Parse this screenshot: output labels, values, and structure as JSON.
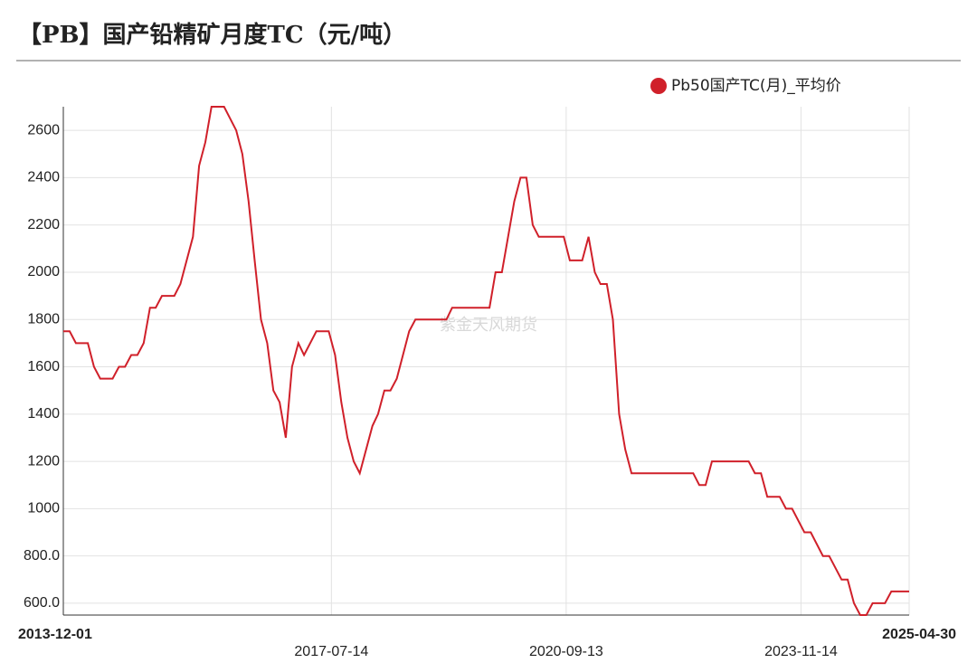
{
  "chart_data": {
    "type": "line",
    "title": "【PB】国产铅精矿月度TC（元/吨）",
    "watermark": "紫金天风期货",
    "x": [
      "2013-12-01",
      "2014-01-01",
      "2014-02-01",
      "2014-04-01",
      "2014-05-01",
      "2014-06-01",
      "2014-08-01",
      "2014-09-01",
      "2014-10-01",
      "2014-11-01",
      "2014-12-01",
      "2015-01-01",
      "2015-02-01",
      "2015-03-01",
      "2015-04-01",
      "2015-06-01",
      "2015-07-01",
      "2015-09-01",
      "2015-10-01",
      "2015-11-01",
      "2015-12-01",
      "2016-02-01",
      "2016-04-01",
      "2016-05-01",
      "2016-06-01",
      "2016-07-01",
      "2016-08-01",
      "2016-09-01",
      "2016-10-01",
      "2016-11-01",
      "2016-12-01",
      "2017-01-01",
      "2017-02-01",
      "2017-03-01",
      "2017-05-01",
      "2017-07-01",
      "2017-08-01",
      "2017-09-01",
      "2017-10-01",
      "2017-11-01",
      "2017-12-01",
      "2018-02-01",
      "2018-03-01",
      "2018-04-01",
      "2018-05-01",
      "2018-06-01",
      "2018-08-01",
      "2018-09-01",
      "2019-02-01",
      "2019-03-01",
      "2019-09-01",
      "2019-10-01",
      "2019-11-01",
      "2020-01-01",
      "2020-02-01",
      "2020-03-01",
      "2020-04-01",
      "2020-05-01",
      "2020-09-01",
      "2020-10-01",
      "2020-12-01",
      "2021-01-01",
      "2021-02-01",
      "2021-03-01",
      "2021-04-01",
      "2021-05-01",
      "2021-06-01",
      "2021-07-01",
      "2021-08-01",
      "2022-06-01",
      "2022-07-01",
      "2022-08-01",
      "2022-09-01",
      "2023-03-01",
      "2023-04-01",
      "2023-05-01",
      "2023-06-01",
      "2023-08-01",
      "2023-09-01",
      "2023-10-01",
      "2023-12-01",
      "2024-01-01",
      "2024-03-01",
      "2024-04-01",
      "2024-06-01",
      "2024-07-01",
      "2024-08-01",
      "2024-09-01",
      "2024-10-01",
      "2024-11-01",
      "2025-01-01",
      "2025-02-01",
      "2025-04-30"
    ],
    "series": [
      {
        "name": "Pb50国产TC(月)_平均价",
        "color": "#d0202a",
        "values": [
          1750,
          1750,
          1700,
          1700,
          1600,
          1550,
          1550,
          1600,
          1600,
          1650,
          1650,
          1700,
          1850,
          1850,
          1900,
          1900,
          1950,
          2150,
          2450,
          2550,
          2700,
          2700,
          2600,
          2500,
          2300,
          2050,
          1800,
          1700,
          1500,
          1450,
          1300,
          1600,
          1700,
          1650,
          1750,
          1750,
          1650,
          1450,
          1300,
          1200,
          1150,
          1350,
          1400,
          1500,
          1500,
          1550,
          1750,
          1800,
          1800,
          1850,
          1850,
          2000,
          2000,
          2300,
          2400,
          2400,
          2200,
          2150,
          2150,
          2050,
          2050,
          2150,
          2000,
          1950,
          1950,
          1800,
          1400,
          1250,
          1150,
          1150,
          1100,
          1100,
          1200,
          1200,
          1150,
          1150,
          1050,
          1050,
          1000,
          1000,
          900,
          900,
          800,
          800,
          700,
          700,
          600,
          550,
          550,
          600,
          600,
          650,
          650
        ]
      }
    ],
    "xlim": [
      "2013-12-01",
      "2025-04-30"
    ],
    "xticks": [
      "2013-12-01",
      "2017-07-14",
      "2020-09-13",
      "2023-11-14",
      "2025-04-30"
    ],
    "ylim": [
      550,
      2700
    ],
    "yticks": [
      {
        "value": 600,
        "label": "600.0"
      },
      {
        "value": 800,
        "label": "800.0"
      },
      1000,
      1200,
      1400,
      1600,
      1800,
      2000,
      2200,
      2400,
      2600
    ],
    "grid": true,
    "legend": "top-right"
  }
}
